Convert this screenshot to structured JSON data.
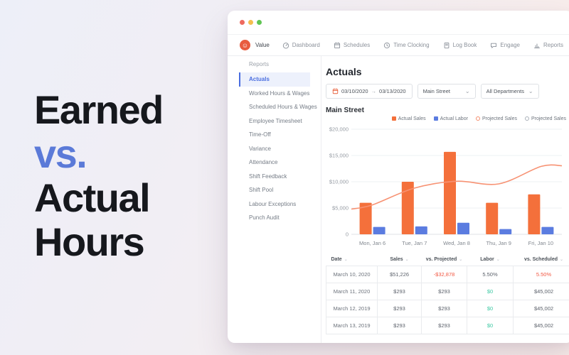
{
  "hero": {
    "line1": "Earned",
    "line2": "vs.",
    "line3": "Actual",
    "line4": "Hours"
  },
  "theme": {
    "accent_orange": "#F4703B",
    "accent_blue": "#5B7CE0",
    "hero_accent": "#5B7AD8",
    "negative": "#F25843",
    "positive": "#3FC9A4",
    "sidebar_active": "#4A6EE0"
  },
  "window": {
    "brand": {
      "name": "Value"
    },
    "nav": {
      "items": [
        {
          "label": "Dashboard"
        },
        {
          "label": "Schedules"
        },
        {
          "label": "Time Clocking"
        },
        {
          "label": "Log Book"
        },
        {
          "label": "Engage"
        },
        {
          "label": "Reports"
        }
      ]
    },
    "sidebar": {
      "title": "Reports",
      "items": [
        {
          "label": "Actuals",
          "active": true
        },
        {
          "label": "Worked Hours & Wages"
        },
        {
          "label": "Scheduled Hours & Wages"
        },
        {
          "label": "Employee Timesheet"
        },
        {
          "label": "Time-Off"
        },
        {
          "label": "Variance"
        },
        {
          "label": "Attendance"
        },
        {
          "label": "Shift Feedback"
        },
        {
          "label": "Shift Pool"
        },
        {
          "label": "Labour Exceptions"
        },
        {
          "label": "Punch Audit"
        }
      ]
    },
    "content": {
      "title": "Actuals",
      "filters": {
        "date_range": {
          "start": "03/10/2020",
          "separator": "→",
          "end": "03/13/2020"
        },
        "location": "Main Street",
        "department": "All Departments"
      },
      "section_title": "Main Street",
      "legend": [
        {
          "label": "Actual Sales",
          "marker": "square",
          "color": "#F4703B"
        },
        {
          "label": "Actual Labor",
          "marker": "square",
          "color": "#5B7CE0"
        },
        {
          "label": "Projected Sales",
          "marker": "ring",
          "color": "#F58E6E"
        },
        {
          "label": "Projected Sales",
          "marker": "ring",
          "color": "#A9B0B9"
        }
      ],
      "table": {
        "columns": [
          "Date",
          "Sales",
          "vs. Projected",
          "Labor",
          "vs. Scheduled"
        ],
        "rows": [
          [
            {
              "text": "March 10, 2020"
            },
            {
              "text": "$51,226"
            },
            {
              "text": "-$32,878",
              "tone": "negative"
            },
            {
              "text": "5.50%"
            },
            {
              "text": "5.50%",
              "tone": "negative"
            }
          ],
          [
            {
              "text": "March 11, 2020"
            },
            {
              "text": "$293"
            },
            {
              "text": "$293"
            },
            {
              "text": "$0",
              "tone": "positive"
            },
            {
              "text": "$45,002"
            }
          ],
          [
            {
              "text": "March 12, 2019"
            },
            {
              "text": "$293"
            },
            {
              "text": "$293"
            },
            {
              "text": "$0",
              "tone": "positive"
            },
            {
              "text": "$45,002"
            }
          ],
          [
            {
              "text": "March 13, 2019"
            },
            {
              "text": "$293"
            },
            {
              "text": "$293"
            },
            {
              "text": "$0",
              "tone": "positive"
            },
            {
              "text": "$45,002"
            }
          ]
        ]
      }
    }
  },
  "chart_data": {
    "type": "bar",
    "title": "Main Street",
    "categories": [
      "Mon, Jan 6",
      "Tue, Jan 7",
      "Wed, Jan 8",
      "Thu, Jan 9",
      "Fri, Jan 10"
    ],
    "series": [
      {
        "name": "Actual Sales",
        "type": "bar",
        "color": "#F4703B",
        "values": [
          6000,
          10000,
          15700,
          6000,
          7600
        ]
      },
      {
        "name": "Actual Labor",
        "type": "bar",
        "color": "#5B7CE0",
        "values": [
          1400,
          1500,
          2200,
          1000,
          1400
        ]
      },
      {
        "name": "Projected Sales",
        "type": "line",
        "color": "#F79273",
        "values": [
          5600,
          8800,
          10100,
          9600,
          12900
        ],
        "edge_values": [
          4800,
          13050
        ]
      }
    ],
    "ylim": [
      0,
      20000
    ],
    "yticks": [
      {
        "label": "$20,000",
        "value": 20000
      },
      {
        "label": "$15,000",
        "value": 15000
      },
      {
        "label": "$10,000",
        "value": 10000
      },
      {
        "label": "$5,000",
        "value": 5000
      },
      {
        "label": "0",
        "value": 0
      }
    ],
    "xlabel": "",
    "ylabel": "",
    "grid": true,
    "legend_position": "top-right"
  }
}
